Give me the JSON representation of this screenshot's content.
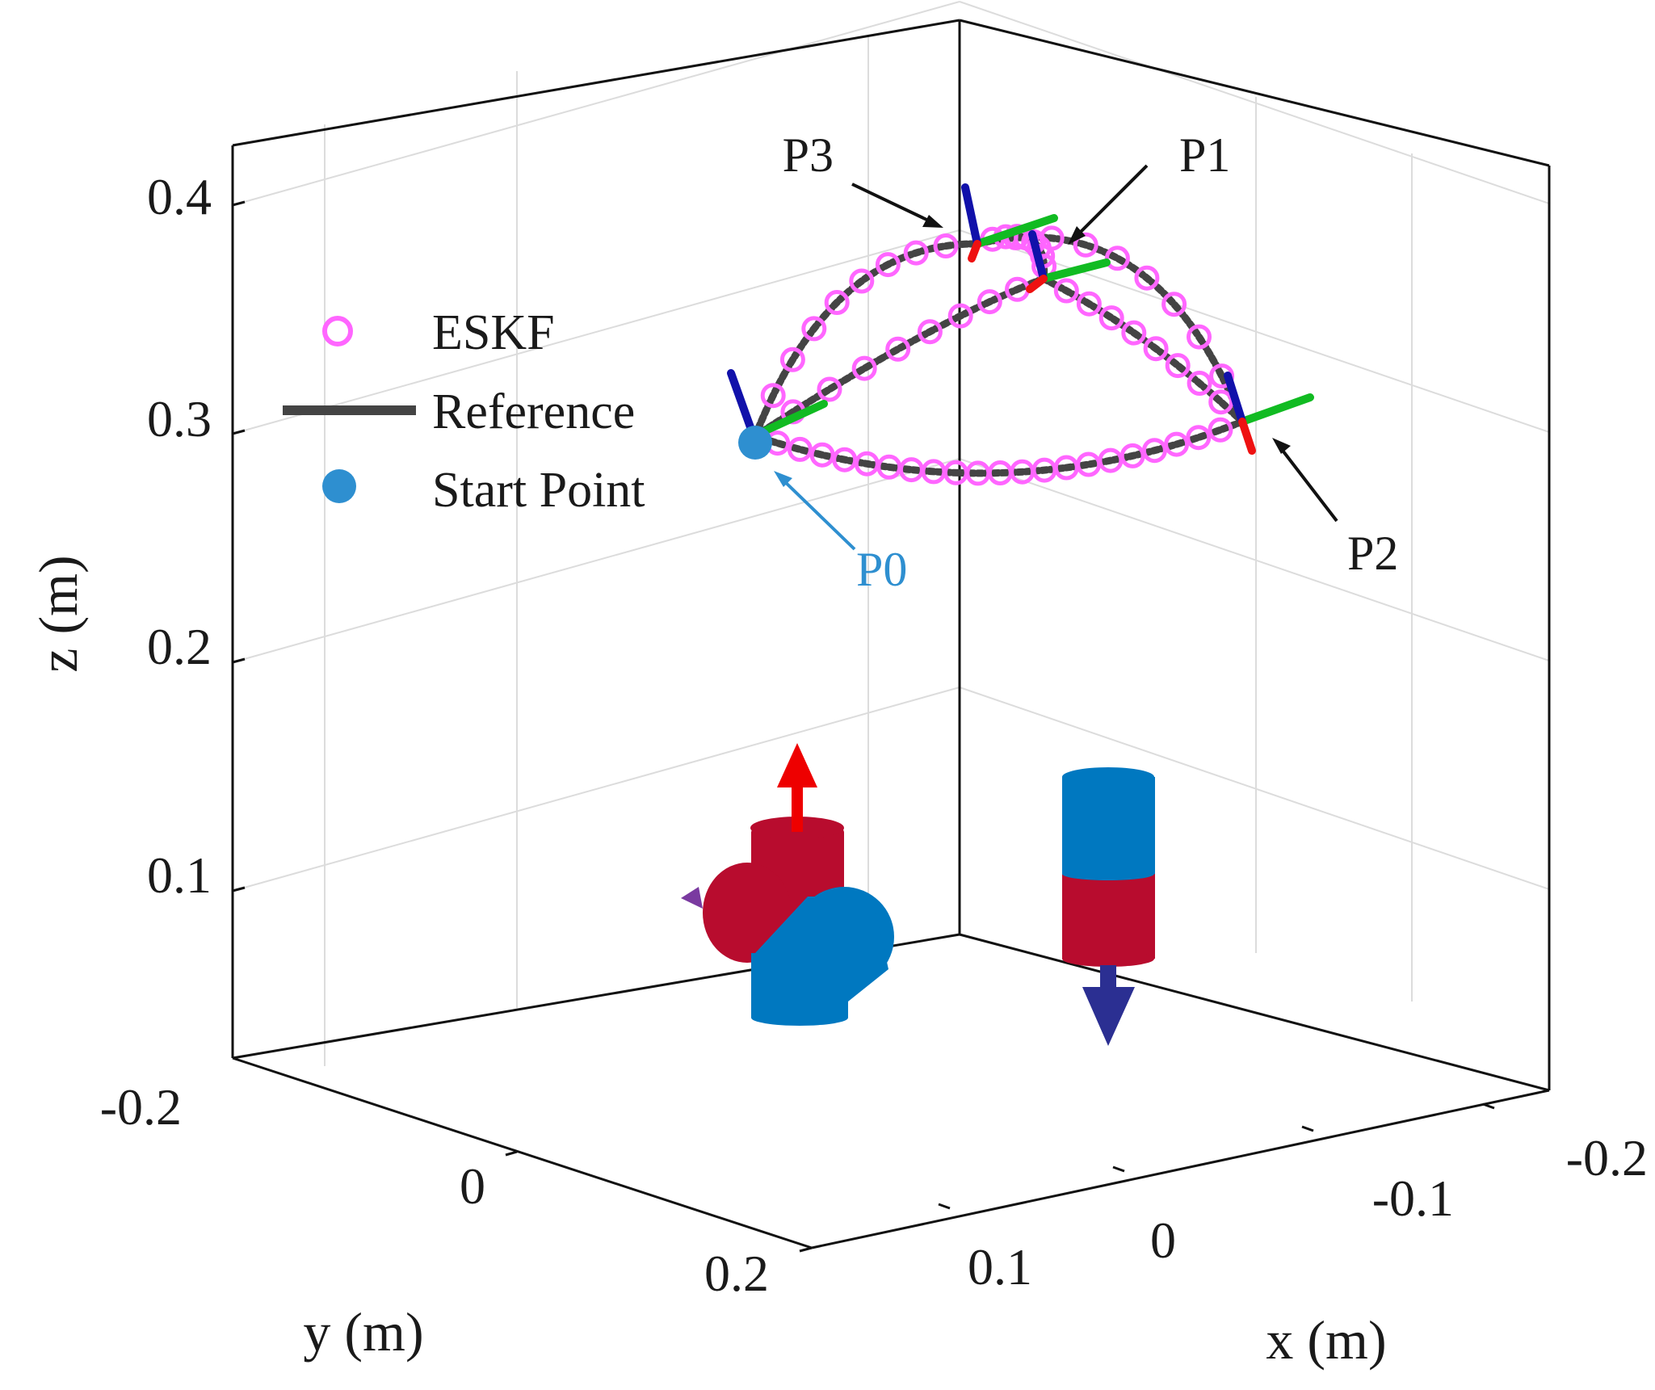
{
  "chart_data": {
    "type": "line3d",
    "title": "",
    "xlabel": "x (m)",
    "ylabel": "y (m)",
    "zlabel": "z (m)",
    "xticks": [
      "-0.2",
      "-0.1",
      "0",
      "0.1"
    ],
    "yticks": [
      "-0.2",
      "0",
      "0.2"
    ],
    "zticks": [
      "0.1",
      "0.2",
      "0.3",
      "0.4"
    ],
    "legend": [
      {
        "label": "ESKF",
        "marker": "circle",
        "color": "#ff66ff"
      },
      {
        "label": "Reference",
        "marker": "line",
        "color": "#444444"
      },
      {
        "label": "Start Point",
        "marker": "filled-circle",
        "color": "#2e8fd0"
      }
    ],
    "points": [
      {
        "label": "P0",
        "color": "#2e8fd0"
      },
      {
        "label": "P1",
        "color": "#000000"
      },
      {
        "label": "P2",
        "color": "#000000"
      },
      {
        "label": "P3",
        "color": "#000000"
      }
    ],
    "grid": true,
    "colors": {
      "eskf": "#ff66ff",
      "reference": "#444444",
      "start": "#2e8fd0",
      "frame_x": "#ee1111",
      "frame_y": "#11bb22",
      "frame_z": "#1111aa",
      "robot_red": "#b80c2e",
      "robot_blue": "#0078c0",
      "arrow_up": "#ee0000",
      "arrow_down": "#2b2f92"
    }
  }
}
